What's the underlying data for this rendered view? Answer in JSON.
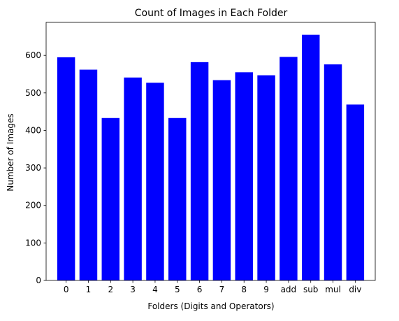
{
  "chart_data": {
    "type": "bar",
    "title": "Count of Images in Each Folder",
    "xlabel": "Folders (Digits and Operators)",
    "ylabel": "Number of Images",
    "categories": [
      "0",
      "1",
      "2",
      "3",
      "4",
      "5",
      "6",
      "7",
      "8",
      "9",
      "add",
      "sub",
      "mul",
      "div"
    ],
    "values": [
      595,
      562,
      433,
      541,
      527,
      433,
      582,
      534,
      555,
      547,
      596,
      655,
      576,
      469
    ],
    "ylim": [
      0,
      688
    ],
    "yticks": [
      0,
      100,
      200,
      300,
      400,
      500,
      600
    ],
    "grid": false,
    "legend": "none",
    "bar_color": "#0000ff"
  }
}
